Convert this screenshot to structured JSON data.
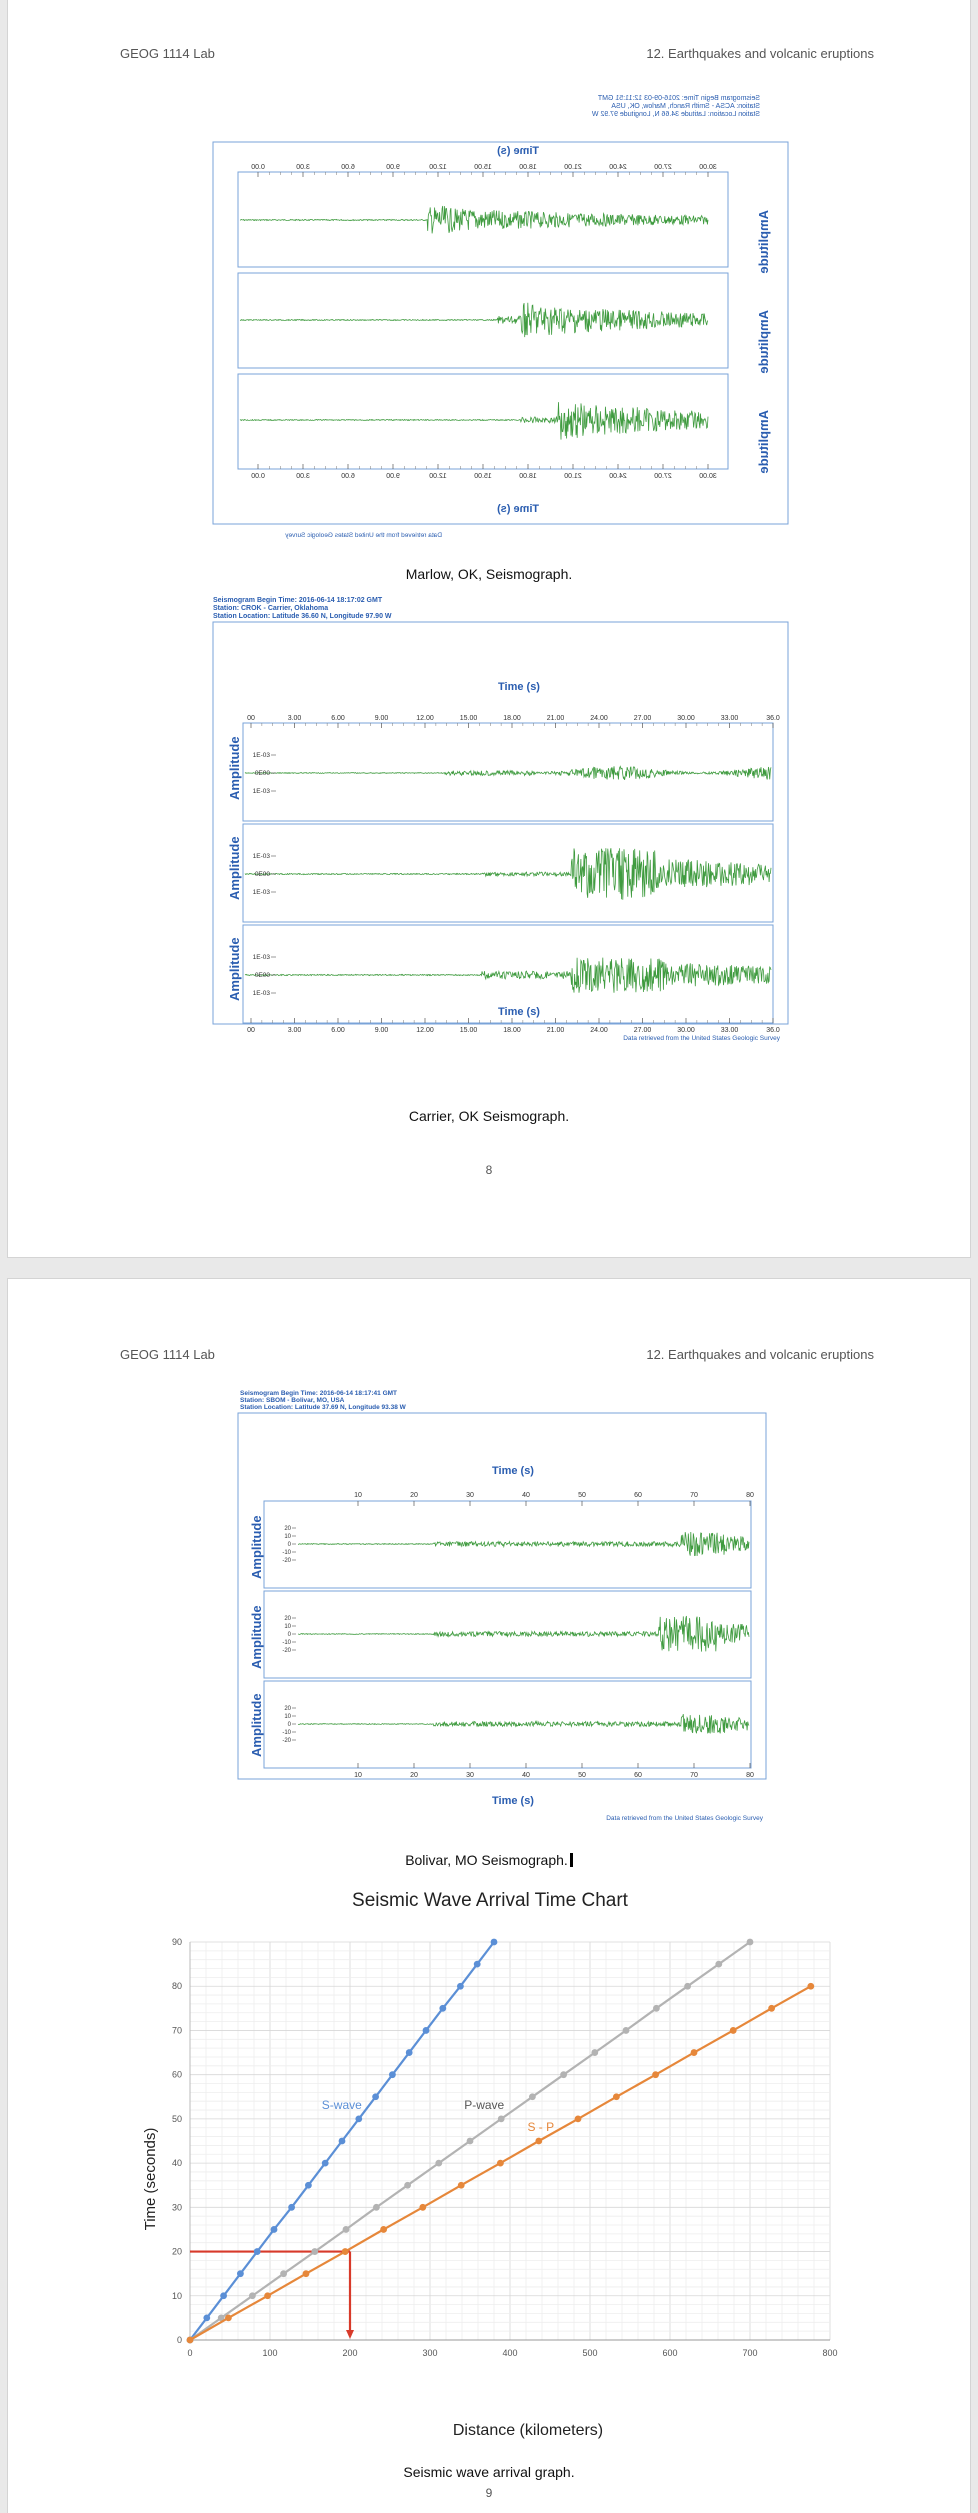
{
  "pages": [
    {
      "header_left": "GEOG 1114 Lab",
      "header_right": "12. Earthquakes and volcanic eruptions",
      "page_number": "8",
      "figures": [
        {
          "caption": "Marlow, OK, Seismograph.",
          "info_lines": [
            "Seismogram Begin Time: 2016-09-03 12:11:51 GMT",
            "Station: ACSA - Smith Ranch, Marlow, OK, USA",
            "Station Location: Latitude 34.66 N, Longitude 97.92 W"
          ],
          "time_label": "Time (s)",
          "amplitude_label": "Amplitude",
          "ticks": [
            "0.00",
            "3.00",
            "6.00",
            "9.00",
            "12.00",
            "15.00",
            "18.00",
            "21.00",
            "24.00",
            "27.00",
            "30.00"
          ],
          "credit": "Data retrieved from the United States Geologic Survey"
        },
        {
          "caption": "Carrier, OK Seismograph.",
          "info_lines": [
            "Seismogram Begin Time: 2016-06-14 18:17:02 GMT",
            "Station: CROK - Carrier, Oklahoma",
            "Station Location: Latitude 36.60 N, Longitude 97.90 W"
          ],
          "time_label": "Time (s)",
          "amplitude_label": "Amplitude",
          "ticks": [
            "00",
            "3.00",
            "6.00",
            "9.00",
            "12.00",
            "15.00",
            "18.00",
            "21.00",
            "24.00",
            "27.00",
            "30.00",
            "33.00",
            "36.0"
          ],
          "y_ticks": [
            "1E-03",
            "0E00",
            "1E-03"
          ],
          "credit": "Data retrieved from the United States Geologic Survey"
        }
      ]
    },
    {
      "header_left": "GEOG 1114 Lab",
      "header_right": "12. Earthquakes and volcanic eruptions",
      "page_number": "9",
      "figures": [
        {
          "caption": "Bolivar, MO Seismograph.",
          "info_lines": [
            "Seismogram Begin Time: 2016-06-14 18:17:41 GMT",
            "Station: SBOM - Bolivar, MO, USA",
            "Station Location: Latitude 37.69 N, Longitude 93.38 W"
          ],
          "time_label": "Time (s)",
          "amplitude_label": "Amplitude",
          "ticks": [
            "10",
            "20",
            "30",
            "40",
            "50",
            "60",
            "70",
            "80"
          ],
          "y_ticks": [
            "20",
            "10",
            "0",
            "-10",
            "-20"
          ],
          "credit": "Data retrieved from the United States Geologic Survey"
        }
      ],
      "graph_caption": "Seismic wave arrival graph."
    }
  ],
  "chart_data": {
    "type": "line",
    "title": "Seismic Wave Arrival Time Chart",
    "xlabel": "Distance (kilometers)",
    "ylabel": "Time (seconds)",
    "xlim": [
      0,
      800
    ],
    "ylim": [
      0,
      90
    ],
    "x_ticks": [
      0,
      100,
      200,
      300,
      400,
      500,
      600,
      700,
      800
    ],
    "y_ticks": [
      0,
      10,
      20,
      30,
      40,
      50,
      60,
      70,
      80,
      90
    ],
    "grid": true,
    "series": [
      {
        "name": "S-wave",
        "color": "#5b8fd6",
        "x": [
          0,
          21,
          42,
          63,
          84,
          105,
          127,
          148,
          169,
          190,
          211,
          232,
          253,
          274,
          295,
          316,
          338,
          359,
          380
        ],
        "y": [
          0,
          5,
          10,
          15,
          20,
          25,
          30,
          35,
          40,
          45,
          50,
          55,
          60,
          65,
          70,
          75,
          80,
          85,
          90
        ]
      },
      {
        "name": "P-wave",
        "color": "#b3b3b3",
        "x": [
          0,
          39,
          78,
          117,
          156,
          195,
          233,
          272,
          311,
          350,
          389,
          428,
          467,
          506,
          545,
          583,
          622,
          661,
          700
        ],
        "y": [
          0,
          5,
          10,
          15,
          20,
          25,
          30,
          35,
          40,
          45,
          50,
          55,
          60,
          65,
          70,
          75,
          80,
          85,
          90
        ]
      },
      {
        "name": "S - P",
        "color": "#e6873a",
        "x": [
          0,
          48,
          97,
          145,
          194,
          242,
          291,
          339,
          388,
          436,
          485,
          533,
          582,
          630,
          679,
          727,
          776
        ],
        "y": [
          0,
          5,
          10,
          15,
          20,
          25,
          30,
          35,
          40,
          45,
          50,
          55,
          60,
          65,
          70,
          75,
          80
        ]
      }
    ],
    "annotation": {
      "color": "#d83a2a",
      "y_value": 20,
      "x_value": 200
    }
  }
}
